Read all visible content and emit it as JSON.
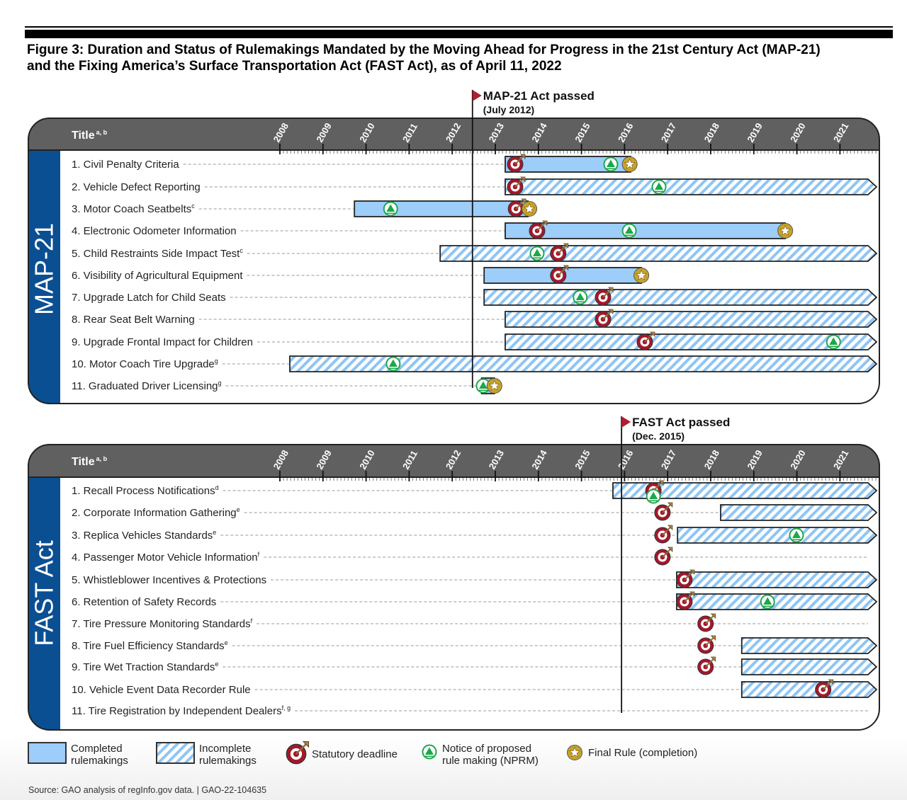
{
  "figure": {
    "title_line1": "Figure 3: Duration and Status of Rulemakings Mandated by the Moving Ahead for Progress in the 21st Century Act (MAP-21)",
    "title_line2": "and the Fixing America’s Surface Transportation Act (FAST Act), as of April 11, 2022"
  },
  "colors": {
    "header_gray": "#606060",
    "section_blue": "#0b4f93",
    "completed_fill": "#9dcdf9",
    "hatch_stripe": "#8ec5f5",
    "deadline_red": "#a3182b",
    "nprm_green": "#1ba84a",
    "final_gold": "#c9a227",
    "event_flag_red": "#b01e2d"
  },
  "chart_data": [
    {
      "type": "bar",
      "orientation": "horizontal timeline",
      "section_label": "MAP-21",
      "header_title": "Title",
      "header_superscript": "a, b",
      "xlim": [
        2008,
        2021.9
      ],
      "ticks": [
        "2008",
        "2009",
        "2010",
        "2011",
        "2012",
        "2013",
        "2014",
        "2015",
        "2016",
        "2017",
        "2018",
        "2019",
        "2020",
        "2021"
      ],
      "event": {
        "label": "MAP-21 Act passed",
        "date_label": "(July 2012)",
        "year": 2012.47
      },
      "rows": [
        {
          "label": "1. Civil Penalty Criteria",
          "note": "",
          "status": "completed",
          "start": 2013.23,
          "end": 2016.14,
          "deadline": 2013.46,
          "nprm": 2015.68,
          "final_rule": 2016.12
        },
        {
          "label": "2. Vehicle Defect Reporting",
          "note": "",
          "status": "incomplete",
          "start": 2013.23,
          "end": null,
          "deadline": 2013.46,
          "nprm": 2016.8,
          "final_rule": null
        },
        {
          "label": "3. Motor Coach Seatbelts",
          "note": "c",
          "status": "completed",
          "start": 2009.73,
          "end": 2013.76,
          "deadline": 2013.48,
          "nprm": 2010.57,
          "final_rule": 2013.79
        },
        {
          "label": "4. Electronic Odometer Information",
          "note": "",
          "status": "completed",
          "start": 2013.23,
          "end": 2019.73,
          "deadline": 2013.97,
          "nprm": 2016.11,
          "final_rule": 2019.73
        },
        {
          "label": "5. Child Restraints Side Impact Test",
          "note": "c",
          "status": "incomplete",
          "start": 2011.72,
          "end": null,
          "deadline": 2014.46,
          "nprm": 2013.97,
          "final_rule": null
        },
        {
          "label": "6. Visibility of Agricultural Equipment",
          "note": "",
          "status": "completed",
          "start": 2012.74,
          "end": 2016.39,
          "deadline": 2014.46,
          "nprm": null,
          "final_rule": 2016.39
        },
        {
          "label": "7. Upgrade Latch for Child Seats",
          "note": "",
          "status": "incomplete",
          "start": 2012.74,
          "end": null,
          "deadline": 2015.5,
          "nprm": 2014.97,
          "final_rule": null
        },
        {
          "label": "8. Rear Seat Belt Warning",
          "note": "",
          "status": "incomplete",
          "start": 2013.23,
          "end": null,
          "deadline": 2015.5,
          "nprm": null,
          "final_rule": null
        },
        {
          "label": "9. Upgrade Frontal Impact for Children",
          "note": "",
          "status": "incomplete",
          "start": 2013.23,
          "end": null,
          "deadline": 2016.47,
          "nprm": 2020.85,
          "final_rule": null
        },
        {
          "label": "10. Motor Coach Tire Upgrade",
          "note": "g",
          "status": "incomplete",
          "start": 2008.23,
          "end": null,
          "deadline": null,
          "nprm": 2010.63,
          "final_rule": null
        },
        {
          "label": "11. Graduated Driver Licensing",
          "note": "g",
          "status": "completed",
          "start": 2012.68,
          "end": 2012.98,
          "deadline": null,
          "nprm": 2012.72,
          "final_rule": 2012.98
        }
      ]
    },
    {
      "type": "bar",
      "orientation": "horizontal timeline",
      "section_label": "FAST Act",
      "header_title": "Title",
      "header_superscript": "a, b",
      "xlim": [
        2008,
        2021.9
      ],
      "ticks": [
        "2008",
        "2009",
        "2010",
        "2011",
        "2012",
        "2013",
        "2014",
        "2015",
        "2016",
        "2017",
        "2018",
        "2019",
        "2020",
        "2021"
      ],
      "event": {
        "label": "FAST Act passed",
        "date_label": "(Dec. 2015)",
        "year": 2015.93
      },
      "rows": [
        {
          "label": "1. Recall Process Notifications",
          "note": "d",
          "status": "incomplete",
          "start": 2015.73,
          "end": null,
          "deadline": 2016.67,
          "nprm": 2016.67,
          "final_rule": null
        },
        {
          "label": "2. Corporate Information Gathering",
          "note": "e",
          "status": "incomplete",
          "start": 2018.23,
          "end": null,
          "deadline": 2016.88,
          "nprm": null,
          "final_rule": null
        },
        {
          "label": "3. Replica Vehicles Standards",
          "note": "e",
          "status": "incomplete",
          "start": 2017.23,
          "end": null,
          "deadline": 2016.88,
          "nprm": 2019.99,
          "final_rule": null
        },
        {
          "label": "4. Passenger Motor Vehicle Information",
          "note": "f",
          "status": null,
          "start": null,
          "end": null,
          "deadline": 2016.88,
          "nprm": null,
          "final_rule": null
        },
        {
          "label": "5. Whistleblower Incentives & Protections",
          "note": "",
          "status": "incomplete",
          "start": 2017.21,
          "end": null,
          "deadline": 2017.39,
          "nprm": null,
          "final_rule": null
        },
        {
          "label": "6. Retention of Safety Records",
          "note": "",
          "status": "incomplete",
          "start": 2017.21,
          "end": null,
          "deadline": 2017.39,
          "nprm": 2019.32,
          "final_rule": null
        },
        {
          "label": "7. Tire Pressure Monitoring Standards",
          "note": "f",
          "status": null,
          "start": null,
          "end": null,
          "deadline": 2017.88,
          "nprm": null,
          "final_rule": null
        },
        {
          "label": "8. Tire Fuel Efficiency Standards",
          "note": "e",
          "status": "incomplete",
          "start": 2018.72,
          "end": null,
          "deadline": 2017.88,
          "nprm": null,
          "final_rule": null
        },
        {
          "label": "9. Tire Wet Traction Standards",
          "note": "e",
          "status": "incomplete",
          "start": 2018.72,
          "end": null,
          "deadline": 2017.88,
          "nprm": null,
          "final_rule": null
        },
        {
          "label": "10. Vehicle Event Data Recorder Rule",
          "note": "",
          "status": "incomplete",
          "start": 2018.72,
          "end": null,
          "deadline": 2020.61,
          "nprm": null,
          "final_rule": null
        },
        {
          "label": "11. Tire Registration by Independent Dealers",
          "note": "f, g",
          "status": null,
          "start": null,
          "end": null,
          "deadline": null,
          "nprm": null,
          "final_rule": null
        }
      ]
    }
  ],
  "legend": {
    "completed_line1": "Completed",
    "completed_line2": "rulemakings",
    "incomplete_line1": "Incomplete",
    "incomplete_line2": "rulemakings",
    "deadline": "Statutory deadline",
    "nprm_line1": "Notice of proposed",
    "nprm_line2": "rule making (NPRM)",
    "final": "Final Rule (completion)"
  },
  "source": "Source: GAO analysis of regInfo.gov data.  |  GAO-22-104635"
}
